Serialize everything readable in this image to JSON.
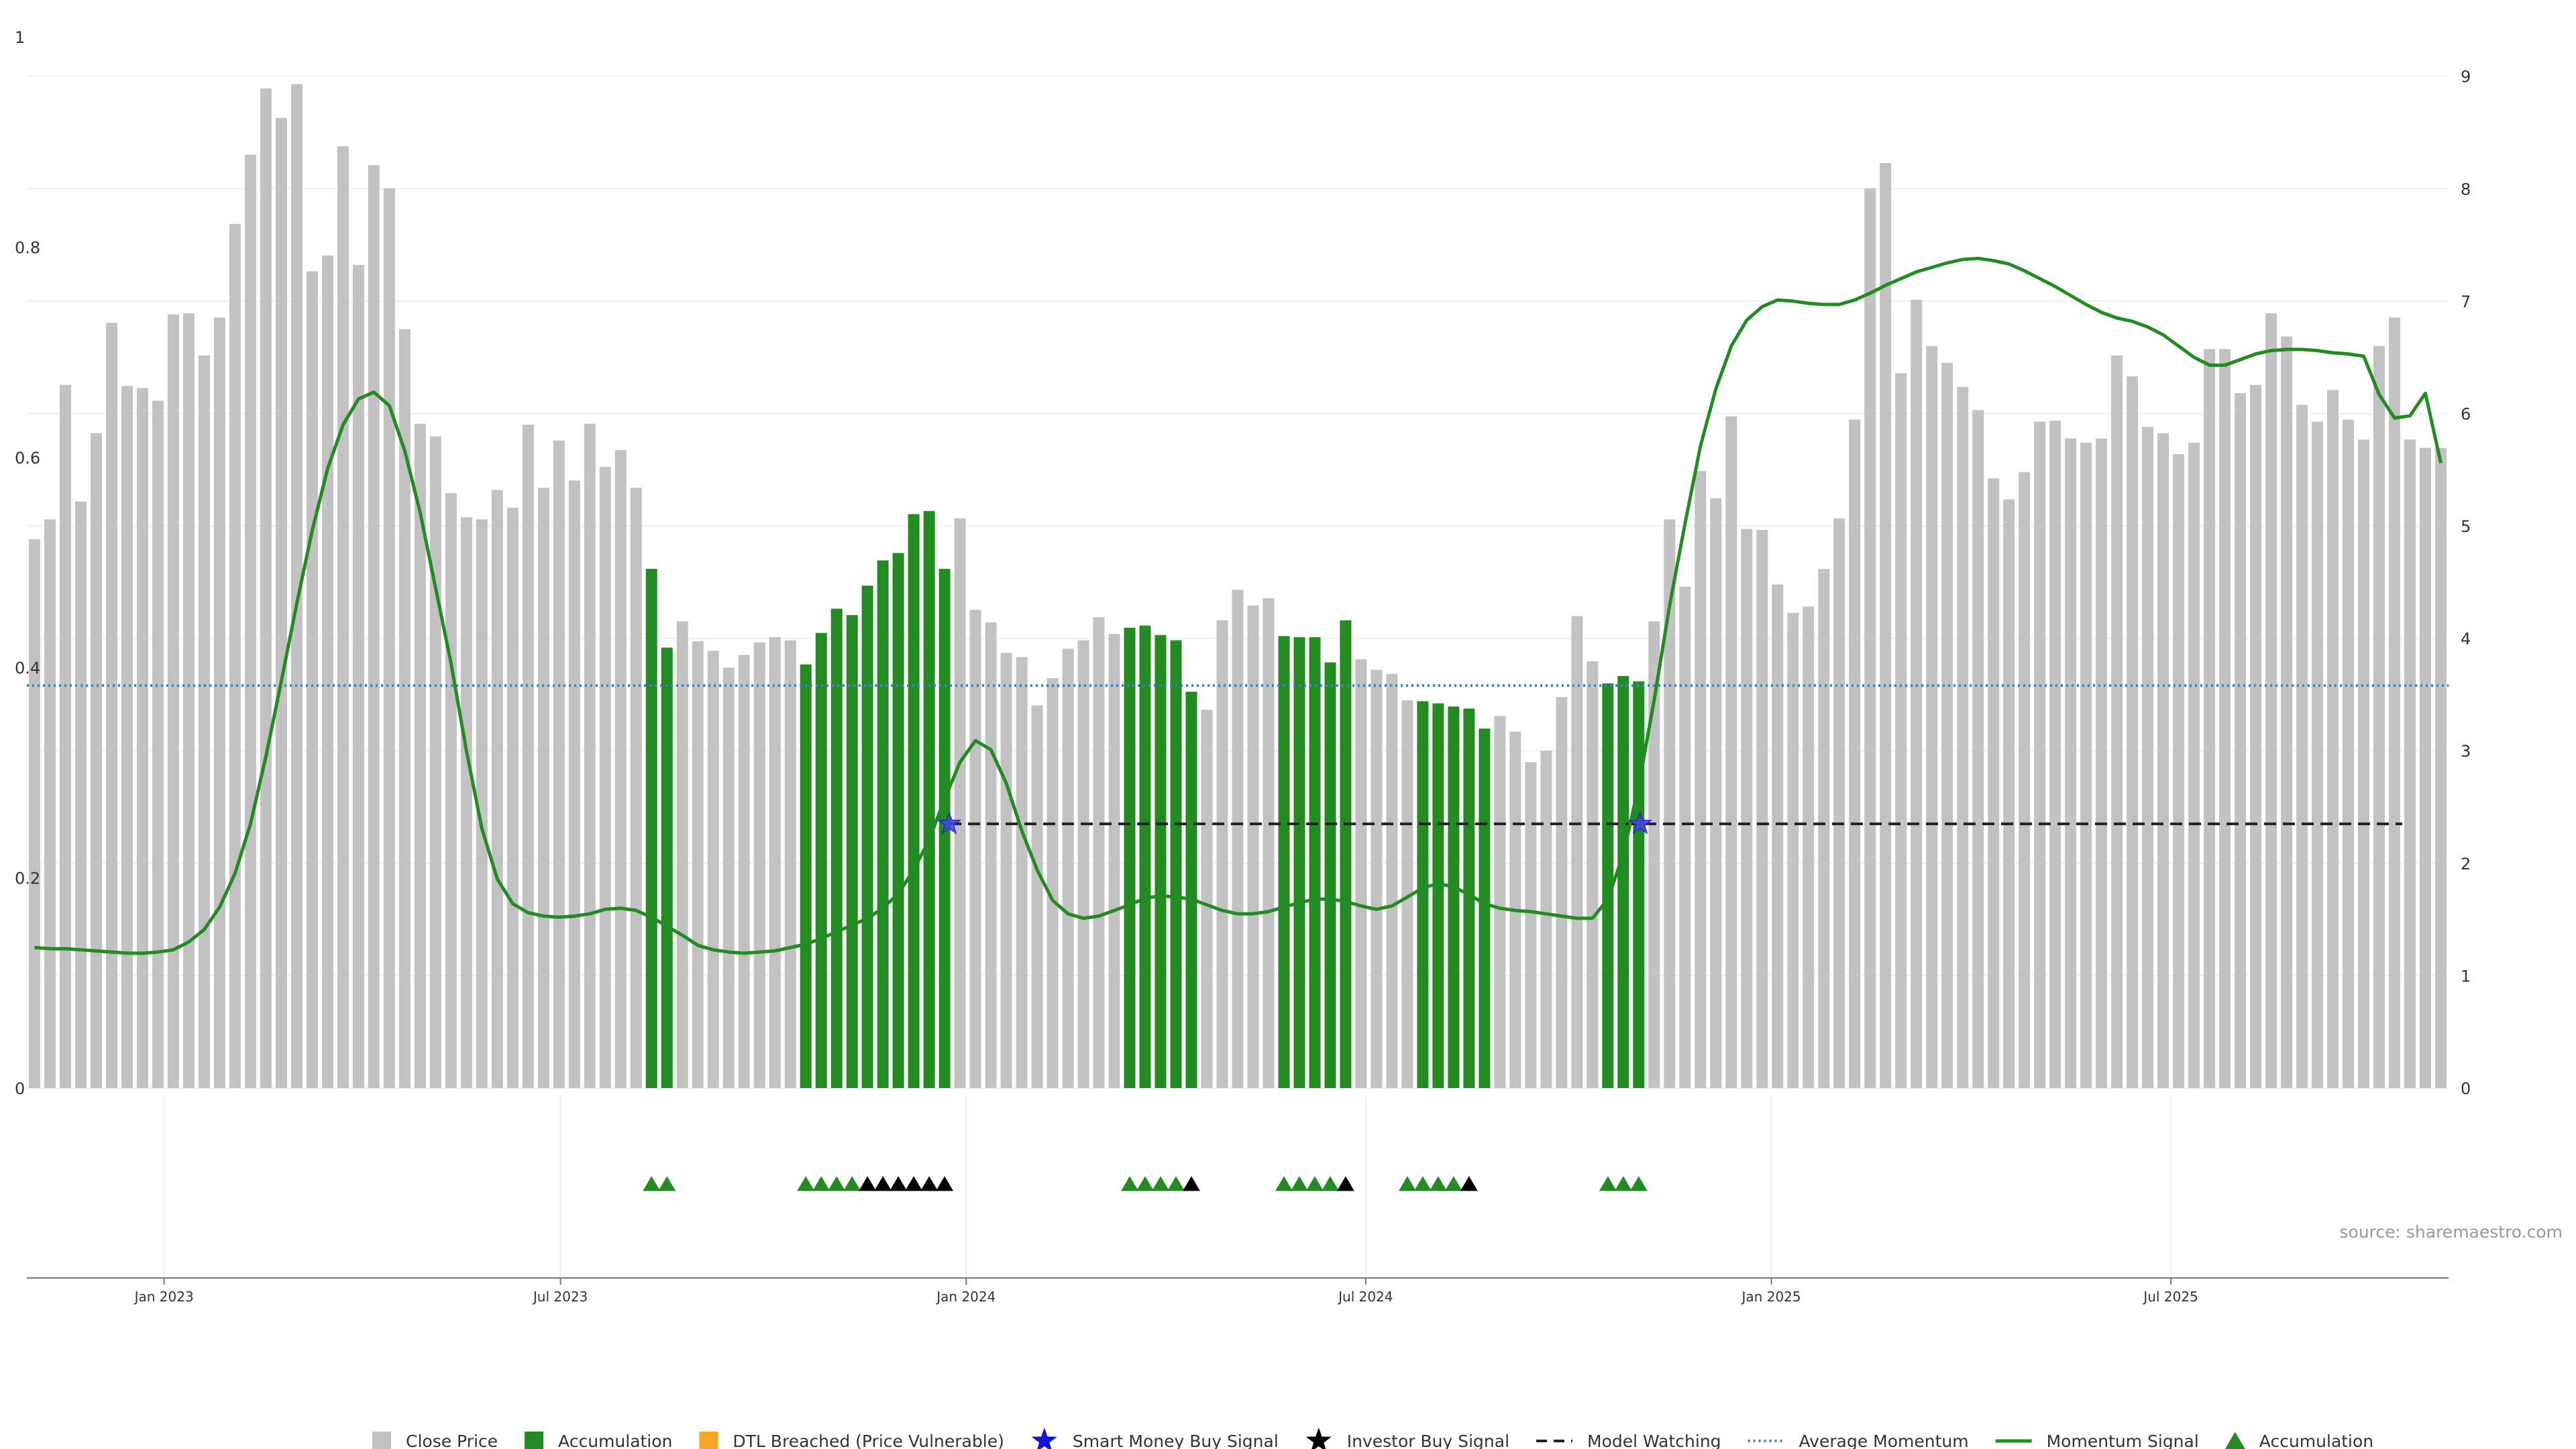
{
  "chart_data": {
    "type": "bar",
    "source_label": "source: sharemaestro.com",
    "x_tick_labels": [
      "Jan 2023",
      "Jul 2023",
      "Jan 2024",
      "Jul 2024",
      "Jan 2025",
      "Jul 2025"
    ],
    "left_axis": {
      "ylim": [
        0,
        1
      ],
      "ticks": [
        0,
        0.2,
        0.4,
        0.6,
        0.8,
        1
      ],
      "tick_labels": [
        "0",
        "0.2",
        "0.4",
        "0.6",
        "0.8",
        "1"
      ]
    },
    "right_axis": {
      "ylim": [
        0,
        9.35
      ],
      "ticks": [
        0,
        1,
        2,
        3,
        4,
        5,
        6,
        7,
        8,
        9
      ],
      "tick_labels": [
        "0",
        "1",
        "2",
        "3",
        "4",
        "5",
        "6",
        "7",
        "8",
        "9"
      ]
    },
    "grid": true,
    "colors": {
      "close": "#c2c2c2",
      "accumulation": "#228b22",
      "dtl": "#f5a623",
      "smart_money": "#1515d6",
      "investor": "#000000",
      "average": "#4682b4",
      "momentum": "#228b22",
      "model_watching": "#222222"
    },
    "bars": {
      "values": [
        0.522,
        0.541,
        0.669,
        0.558,
        0.623,
        0.728,
        0.668,
        0.666,
        0.654,
        0.736,
        0.737,
        0.697,
        0.733,
        0.822,
        0.888,
        0.951,
        0.923,
        0.955,
        0.777,
        0.792,
        0.896,
        0.783,
        0.878,
        0.856,
        0.722,
        0.632,
        0.62,
        0.566,
        0.543,
        0.541,
        0.569,
        0.552,
        0.631,
        0.571,
        0.616,
        0.578,
        0.632,
        0.591,
        0.607,
        0.571,
        0.494,
        0.419,
        0.444,
        0.425,
        0.416,
        0.4,
        0.412,
        0.424,
        0.429,
        0.426,
        0.403,
        0.433,
        0.456,
        0.45,
        0.478,
        0.502,
        0.509,
        0.546,
        0.549,
        0.494,
        0.542,
        0.455,
        0.443,
        0.414,
        0.41,
        0.364,
        0.39,
        0.418,
        0.426,
        0.448,
        0.432,
        0.438,
        0.44,
        0.431,
        0.426,
        0.377,
        0.36,
        0.445,
        0.474,
        0.459,
        0.466,
        0.43,
        0.429,
        0.429,
        0.405,
        0.445,
        0.408,
        0.398,
        0.394,
        0.369,
        0.368,
        0.366,
        0.363,
        0.361,
        0.342,
        0.354,
        0.339,
        0.31,
        0.321,
        0.372,
        0.449,
        0.406,
        0.385,
        0.392,
        0.387,
        0.444,
        0.541,
        0.477,
        0.587,
        0.561,
        0.639,
        0.532,
        0.531,
        0.479,
        0.452,
        0.458,
        0.494,
        0.542,
        0.636,
        0.856,
        0.88,
        0.68,
        0.75,
        0.706,
        0.69,
        0.667,
        0.645,
        0.58,
        0.56,
        0.586,
        0.634,
        0.635,
        0.618,
        0.614,
        0.618,
        0.697,
        0.677,
        0.629,
        0.623,
        0.603,
        0.614,
        0.703,
        0.703,
        0.661,
        0.669,
        0.737,
        0.715,
        0.65,
        0.634,
        0.664,
        0.636,
        0.617,
        0.706,
        0.733,
        0.617,
        0.609,
        0.609
      ],
      "accumulation_flags": [
        0,
        0,
        0,
        0,
        0,
        0,
        0,
        0,
        0,
        0,
        0,
        0,
        0,
        0,
        0,
        0,
        0,
        0,
        0,
        0,
        0,
        0,
        0,
        0,
        0,
        0,
        0,
        0,
        0,
        0,
        0,
        0,
        0,
        0,
        0,
        0,
        0,
        0,
        0,
        0,
        1,
        1,
        0,
        0,
        0,
        0,
        0,
        0,
        0,
        0,
        1,
        1,
        1,
        1,
        1,
        1,
        1,
        1,
        1,
        1,
        0,
        0,
        0,
        0,
        0,
        0,
        0,
        0,
        0,
        0,
        0,
        1,
        1,
        1,
        1,
        1,
        0,
        0,
        0,
        0,
        0,
        1,
        1,
        1,
        1,
        1,
        0,
        0,
        0,
        0,
        1,
        1,
        1,
        1,
        1,
        0,
        0,
        0,
        0,
        0,
        0,
        0,
        1,
        1,
        1,
        0,
        0,
        0,
        0,
        0,
        0,
        0,
        0,
        0,
        0,
        0,
        0,
        0,
        0,
        0,
        0,
        0,
        0,
        0,
        0,
        0,
        0,
        0,
        0,
        0,
        0,
        0,
        0,
        0,
        0,
        0,
        0,
        0,
        0,
        0,
        0,
        0,
        0,
        0,
        0,
        0,
        0,
        0,
        0,
        0,
        0,
        0,
        0,
        0,
        0,
        0,
        0
      ]
    },
    "momentum_signal": [
      1.25,
      1.24,
      1.24,
      1.23,
      1.22,
      1.21,
      1.2,
      1.2,
      1.21,
      1.23,
      1.3,
      1.41,
      1.61,
      1.91,
      2.35,
      2.95,
      3.62,
      4.31,
      4.96,
      5.51,
      5.9,
      6.13,
      6.19,
      6.07,
      5.67,
      5.12,
      4.45,
      3.78,
      3.0,
      2.31,
      1.86,
      1.64,
      1.56,
      1.53,
      1.52,
      1.53,
      1.55,
      1.59,
      1.6,
      1.58,
      1.52,
      1.44,
      1.36,
      1.27,
      1.23,
      1.21,
      1.2,
      1.21,
      1.22,
      1.25,
      1.28,
      1.33,
      1.39,
      1.45,
      1.51,
      1.6,
      1.73,
      1.94,
      2.21,
      2.57,
      2.9,
      3.09,
      3.01,
      2.71,
      2.29,
      1.94,
      1.67,
      1.55,
      1.51,
      1.53,
      1.58,
      1.63,
      1.69,
      1.71,
      1.7,
      1.68,
      1.63,
      1.58,
      1.55,
      1.55,
      1.57,
      1.61,
      1.65,
      1.68,
      1.68,
      1.66,
      1.62,
      1.59,
      1.62,
      1.7,
      1.78,
      1.82,
      1.79,
      1.72,
      1.64,
      1.6,
      1.58,
      1.57,
      1.55,
      1.53,
      1.51,
      1.51,
      1.68,
      2.08,
      2.69,
      3.45,
      4.29,
      5.02,
      5.71,
      6.22,
      6.6,
      6.83,
      6.95,
      7.01,
      7.0,
      6.98,
      6.97,
      6.97,
      7.01,
      7.07,
      7.14,
      7.2,
      7.26,
      7.3,
      7.34,
      7.37,
      7.38,
      7.36,
      7.33,
      7.27,
      7.2,
      7.13,
      7.05,
      6.97,
      6.9,
      6.85,
      6.82,
      6.77,
      6.7,
      6.6,
      6.5,
      6.43,
      6.43,
      6.48,
      6.53,
      6.56,
      6.57,
      6.57,
      6.56,
      6.54,
      6.53,
      6.51,
      6.17,
      5.96,
      5.98,
      6.18,
      5.56
    ],
    "average_momentum": 3.58,
    "model_watching": {
      "start_index": 59.3,
      "end_index": 153.5,
      "value": 2.35
    },
    "smart_money_signals": [
      {
        "index": 59.3,
        "value": 2.35
      },
      {
        "index": 104.1,
        "value": 2.35
      }
    ],
    "signal_markers": [
      {
        "index": 40,
        "type": "accumulation"
      },
      {
        "index": 41,
        "type": "accumulation"
      },
      {
        "index": 50,
        "type": "accumulation"
      },
      {
        "index": 51,
        "type": "accumulation"
      },
      {
        "index": 52,
        "type": "accumulation"
      },
      {
        "index": 53,
        "type": "accumulation"
      },
      {
        "index": 54,
        "type": "investor"
      },
      {
        "index": 55,
        "type": "investor"
      },
      {
        "index": 56,
        "type": "investor"
      },
      {
        "index": 57,
        "type": "investor"
      },
      {
        "index": 58,
        "type": "investor"
      },
      {
        "index": 59,
        "type": "investor"
      },
      {
        "index": 71,
        "type": "accumulation"
      },
      {
        "index": 72,
        "type": "accumulation"
      },
      {
        "index": 73,
        "type": "accumulation"
      },
      {
        "index": 74,
        "type": "accumulation"
      },
      {
        "index": 75,
        "type": "investor"
      },
      {
        "index": 81,
        "type": "accumulation"
      },
      {
        "index": 82,
        "type": "accumulation"
      },
      {
        "index": 83,
        "type": "accumulation"
      },
      {
        "index": 84,
        "type": "accumulation"
      },
      {
        "index": 85,
        "type": "investor"
      },
      {
        "index": 89,
        "type": "accumulation"
      },
      {
        "index": 90,
        "type": "accumulation"
      },
      {
        "index": 91,
        "type": "accumulation"
      },
      {
        "index": 92,
        "type": "accumulation"
      },
      {
        "index": 93,
        "type": "investor"
      },
      {
        "index": 102,
        "type": "accumulation"
      },
      {
        "index": 103,
        "type": "accumulation"
      },
      {
        "index": 104,
        "type": "accumulation"
      }
    ],
    "legend": [
      {
        "label": "Close Price",
        "symbol": "square",
        "color": "#c2c2c2"
      },
      {
        "label": "Accumulation",
        "symbol": "square",
        "color": "#228b22"
      },
      {
        "label": "DTL Breached (Price Vulnerable)",
        "symbol": "square",
        "color": "#f5a623"
      },
      {
        "label": "Smart Money Buy Signal",
        "symbol": "star",
        "color": "#1515d6"
      },
      {
        "label": "Investor Buy Signal",
        "symbol": "star",
        "color": "#000000"
      },
      {
        "label": "Model Watching",
        "symbol": "dash",
        "color": "#222222"
      },
      {
        "label": "Average Momentum",
        "symbol": "dot",
        "color": "#4682b4"
      },
      {
        "label": "Momentum Signal",
        "symbol": "line",
        "color": "#228b22"
      },
      {
        "label": "Accumulation",
        "symbol": "triangle",
        "color": "#228b22"
      }
    ]
  }
}
